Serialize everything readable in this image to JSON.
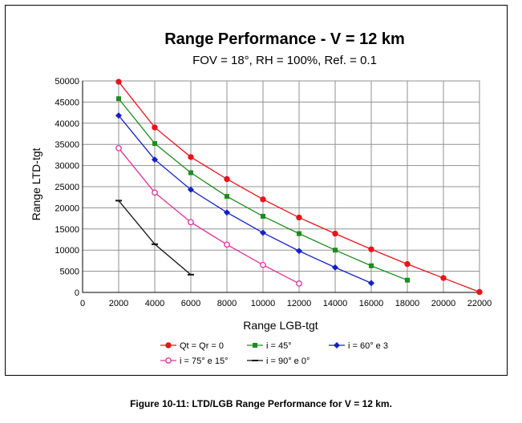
{
  "chart_data": {
    "type": "line",
    "title": "Range Performance - V = 12 km",
    "subtitle": "FOV = 18°, RH = 100%, Ref. = 0.1",
    "xlabel": "Range LGB-tgt",
    "ylabel": "Range LTD-tgt",
    "xlim": [
      0,
      22000
    ],
    "ylim": [
      0,
      50000
    ],
    "x_ticks": [
      "0",
      "2000",
      "4000",
      "6000",
      "8000",
      "10000",
      "12000",
      "14000",
      "16000",
      "18000",
      "20000",
      "22000"
    ],
    "y_ticks": [
      "0",
      "5000",
      "10000",
      "15000",
      "20000",
      "25000",
      "30000",
      "35000",
      "40000",
      "45000",
      "50000"
    ],
    "grid": true,
    "legend_position": "bottom",
    "series": [
      {
        "name": "Qt = Qr = 0",
        "color": "#e8141c",
        "marker": "circle-filled",
        "x": [
          2000,
          4000,
          6000,
          8000,
          10000,
          12000,
          14000,
          16000,
          18000,
          20000,
          22000
        ],
        "y": [
          49800,
          39000,
          32000,
          26800,
          22000,
          17700,
          13900,
          10200,
          6700,
          3400,
          100
        ]
      },
      {
        "name": "i = 45°",
        "color": "#1e8c1e",
        "marker": "square-filled",
        "x": [
          2000,
          4000,
          6000,
          8000,
          10000,
          12000,
          14000,
          16000,
          18000
        ],
        "y": [
          45800,
          35200,
          28300,
          22700,
          18000,
          13900,
          10000,
          6300,
          2900
        ]
      },
      {
        "name": "i = 60° e 3",
        "color": "#1420c8",
        "marker": "diamond-filled",
        "x": [
          2000,
          4000,
          6000,
          8000,
          10000,
          12000,
          14000,
          16000
        ],
        "y": [
          41800,
          31400,
          24300,
          18900,
          14100,
          9800,
          5900,
          2200
        ]
      },
      {
        "name": "i = 75° e 15°",
        "color": "#e0309a",
        "marker": "circle-open",
        "x": [
          2000,
          4000,
          6000,
          8000,
          10000,
          12000
        ],
        "y": [
          34100,
          23600,
          16600,
          11300,
          6500,
          2100
        ]
      },
      {
        "name": "i = 90° e 0°",
        "color": "#111111",
        "marker": "dash",
        "x": [
          2000,
          4000,
          6000
        ],
        "y": [
          21700,
          11400,
          4200
        ]
      }
    ]
  },
  "caption": "Figure 10-11: LTD/LGB Range Performance for V = 12 km."
}
